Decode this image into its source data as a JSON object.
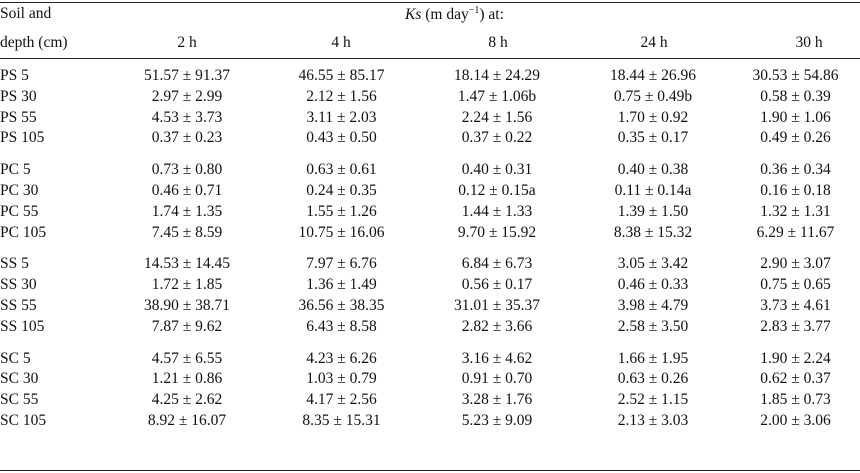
{
  "header": {
    "soil_line1": "Soil and",
    "soil_line2": "depth (cm)",
    "ks_symbol": "Ks",
    "ks_unit_pre": " (m day",
    "ks_exponent": "−1",
    "ks_unit_post": ") at:",
    "columns": [
      "2 h",
      "4 h",
      "8 h",
      "24 h",
      "30 h"
    ]
  },
  "groups": [
    {
      "rows": [
        {
          "label": "PS 5",
          "values": [
            "51.57 ± 91.37",
            "46.55 ± 85.17",
            "18.14 ± 24.29",
            "18.44 ± 26.96",
            "30.53 ± 54.86"
          ]
        },
        {
          "label": "PS 30",
          "values": [
            "2.97 ± 2.99",
            "2.12 ± 1.56",
            "1.47 ± 1.06b",
            "0.75 ± 0.49b",
            "0.58 ± 0.39"
          ]
        },
        {
          "label": "PS 55",
          "values": [
            "4.53 ± 3.73",
            "3.11 ± 2.03",
            "2.24 ± 1.56",
            "1.70 ± 0.92",
            "1.90 ± 1.06"
          ]
        },
        {
          "label": "PS 105",
          "values": [
            "0.37 ± 0.23",
            "0.43 ± 0.50",
            "0.37 ± 0.22",
            "0.35 ± 0.17",
            "0.49 ± 0.26"
          ]
        }
      ]
    },
    {
      "rows": [
        {
          "label": "PC 5",
          "values": [
            "0.73 ± 0.80",
            "0.63 ± 0.61",
            "0.40 ± 0.31",
            "0.40 ± 0.38",
            "0.36 ± 0.34"
          ]
        },
        {
          "label": "PC 30",
          "values": [
            "0.46 ± 0.71",
            "0.24 ± 0.35",
            "0.12 ± 0.15a",
            "0.11 ± 0.14a",
            "0.16 ± 0.18"
          ]
        },
        {
          "label": "PC 55",
          "values": [
            "1.74 ± 1.35",
            "1.55 ± 1.26",
            "1.44 ± 1.33",
            "1.39 ± 1.50",
            "1.32 ± 1.31"
          ]
        },
        {
          "label": "PC 105",
          "values": [
            "7.45 ± 8.59",
            "10.75 ± 16.06",
            "9.70 ± 15.92",
            "8.38 ± 15.32",
            "6.29 ± 11.67"
          ]
        }
      ]
    },
    {
      "rows": [
        {
          "label": "SS 5",
          "values": [
            "14.53 ± 14.45",
            "7.97 ± 6.76",
            "6.84 ± 6.73",
            "3.05 ± 3.42",
            "2.90 ± 3.07"
          ]
        },
        {
          "label": "SS 30",
          "values": [
            "1.72 ± 1.85",
            "1.36 ± 1.49",
            "0.56 ± 0.17",
            "0.46 ± 0.33",
            "0.75 ± 0.65"
          ]
        },
        {
          "label": "SS 55",
          "values": [
            "38.90 ± 38.71",
            "36.56 ± 38.35",
            "31.01 ± 35.37",
            "3.98 ± 4.79",
            "3.73 ± 4.61"
          ]
        },
        {
          "label": "SS 105",
          "values": [
            "7.87 ± 9.62",
            "6.43 ± 8.58",
            "2.82 ± 3.66",
            "2.58 ± 3.50",
            "2.83 ± 3.77"
          ]
        }
      ]
    },
    {
      "rows": [
        {
          "label": "SC 5",
          "values": [
            "4.57 ± 6.55",
            "4.23 ± 6.26",
            "3.16 ± 4.62",
            "1.66 ± 1.95",
            "1.90 ± 2.24"
          ]
        },
        {
          "label": "SC 30",
          "values": [
            "1.21 ± 0.86",
            "1.03 ± 0.79",
            "0.91 ± 0.70",
            "0.63 ± 0.26",
            "0.62 ± 0.37"
          ]
        },
        {
          "label": "SC 55",
          "values": [
            "4.25 ± 2.62",
            "4.17 ± 2.56",
            "3.28 ± 1.76",
            "2.52 ± 1.15",
            "1.85 ± 0.73"
          ]
        },
        {
          "label": "SC 105",
          "values": [
            "8.92 ± 16.07",
            "8.35 ± 15.31",
            "5.23 ± 9.09",
            "2.13 ± 3.03",
            "2.00 ± 3.06"
          ]
        }
      ]
    }
  ]
}
